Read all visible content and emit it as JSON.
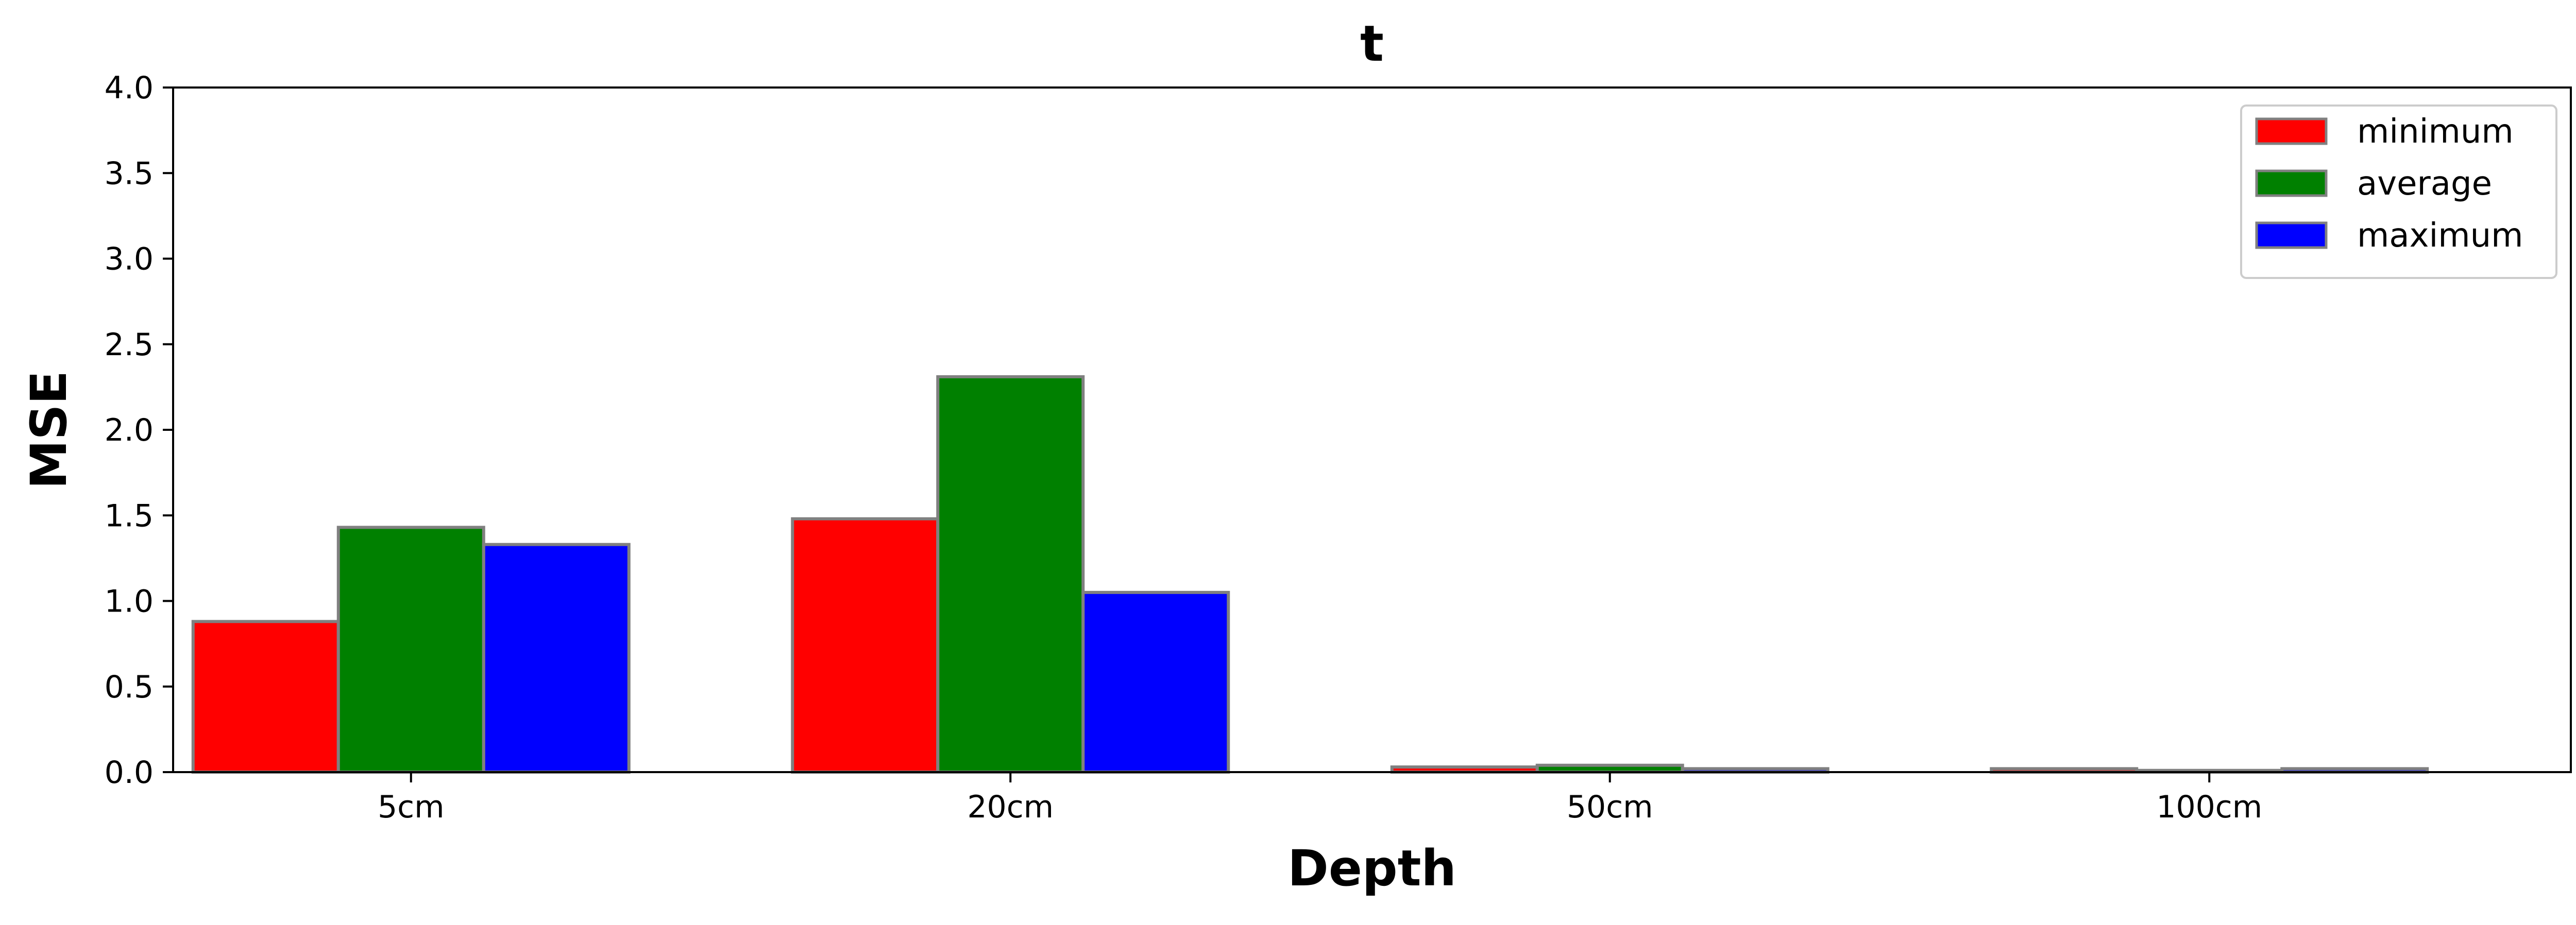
{
  "chart_data": {
    "type": "bar",
    "title": "t",
    "xlabel": "Depth",
    "ylabel": "MSE",
    "categories": [
      "5cm",
      "20cm",
      "50cm",
      "100cm"
    ],
    "series": [
      {
        "name": "minimum",
        "color": "#ff0000",
        "values": [
          0.88,
          1.48,
          0.03,
          0.02
        ]
      },
      {
        "name": "average",
        "color": "#008000",
        "values": [
          1.43,
          2.31,
          0.04,
          0.01
        ]
      },
      {
        "name": "maximum",
        "color": "#0000ff",
        "values": [
          1.33,
          1.05,
          0.02,
          0.02
        ]
      }
    ],
    "ylim": [
      0,
      4.0
    ],
    "yticks": [
      "0.0",
      "0.5",
      "1.0",
      "1.5",
      "2.0",
      "2.5",
      "3.0",
      "3.5",
      "4.0"
    ],
    "grid": false,
    "legend_position": "top-right"
  }
}
